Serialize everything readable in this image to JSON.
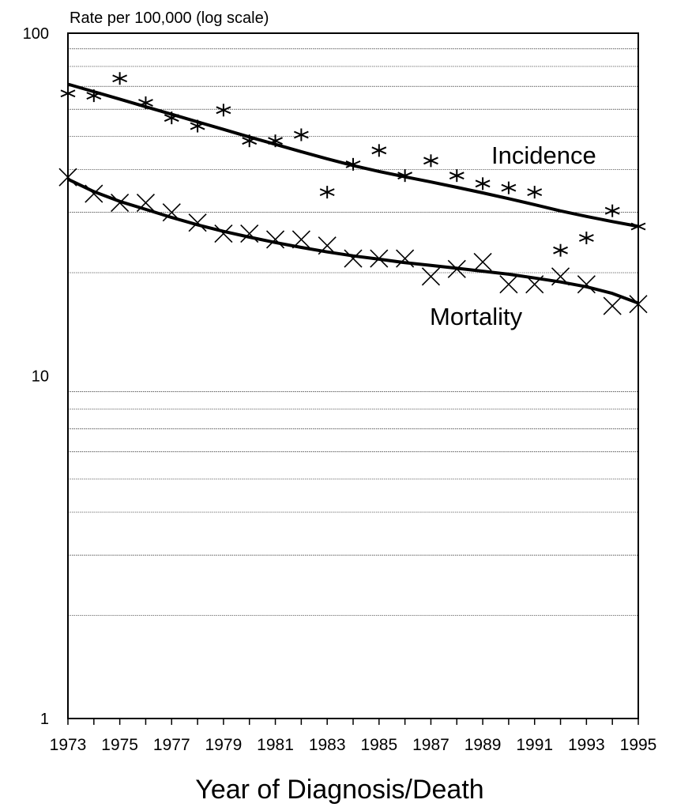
{
  "chart_data": {
    "type": "scatter",
    "title": "",
    "ylabel": "Rate per 100,000 (log scale)",
    "xlabel": "Year of Diagnosis/Death",
    "y_scale": "log",
    "ylim": [
      1,
      100
    ],
    "xlim": [
      1973,
      1995
    ],
    "grid": true,
    "y_ticks": [
      "1",
      "10",
      "100"
    ],
    "x_ticks": [
      "1973",
      "1975",
      "1977",
      "1979",
      "1981",
      "1983",
      "1985",
      "1987",
      "1989",
      "1991",
      "1993",
      "1995"
    ],
    "x": [
      1973,
      1974,
      1975,
      1976,
      1977,
      1978,
      1979,
      1980,
      1981,
      1982,
      1983,
      1984,
      1985,
      1986,
      1987,
      1988,
      1989,
      1990,
      1991,
      1992,
      1993,
      1994,
      1995
    ],
    "series": [
      {
        "name": "Incidence",
        "marker": "asterisk",
        "values": [
          66,
          65,
          73,
          62,
          56,
          53,
          59,
          48,
          48,
          50,
          34,
          41,
          45,
          38,
          42,
          38,
          36,
          35,
          34,
          23,
          25,
          30,
          27
        ],
        "trend": [
          71,
          67.5,
          64.2,
          61.0,
          58.0,
          55.1,
          52.4,
          49.8,
          47.4,
          45.1,
          43.0,
          41.1,
          39.5,
          38.1,
          36.8,
          35.5,
          34.2,
          32.9,
          31.6,
          30.3,
          29.2,
          28.2,
          27.3
        ]
      },
      {
        "name": "Mortality",
        "marker": "cross",
        "values": [
          38,
          34,
          32,
          32,
          30,
          28,
          26,
          26,
          25,
          25,
          24,
          22,
          22,
          22,
          19.5,
          20.5,
          21.5,
          18.5,
          18.5,
          19.5,
          18.5,
          16,
          16.2
        ],
        "trend": [
          37.5,
          34.5,
          32.3,
          30.6,
          29.0,
          27.6,
          26.4,
          25.4,
          24.5,
          23.7,
          23.0,
          22.4,
          21.9,
          21.4,
          21.0,
          20.6,
          20.2,
          19.8,
          19.3,
          18.8,
          18.2,
          17.4,
          16.3
        ]
      }
    ]
  }
}
